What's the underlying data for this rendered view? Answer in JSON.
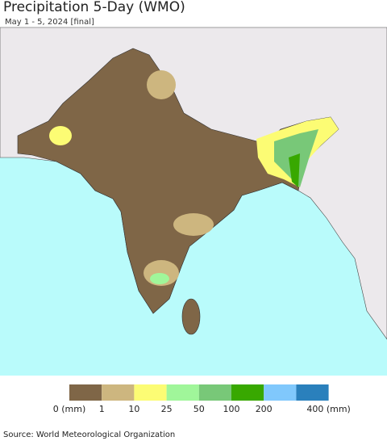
{
  "header": {
    "title": "Precipitation 5-Day (WMO)",
    "subtitle": "May 1 - 5, 2024 [final]"
  },
  "legend": {
    "colors": [
      "#7f6647",
      "#cdb67f",
      "#fcfc74",
      "#a0f69a",
      "#78c878",
      "#38a800",
      "#80c8fc",
      "#2a80bc"
    ],
    "labels": [
      "0 (mm)",
      "1",
      "10",
      "25",
      "50",
      "100",
      "200",
      "400 (mm)"
    ]
  },
  "source": "Source: World Meteorological Organization"
}
